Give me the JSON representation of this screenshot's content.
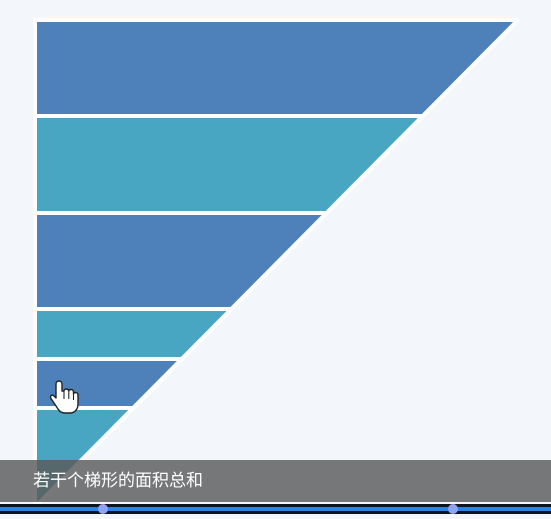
{
  "caption": {
    "text": "若干个梯形的面积总和"
  },
  "figure": {
    "description_fill_colors": {
      "blue": "#4e81ba",
      "teal": "#48a6c2",
      "outline": "#ffffff"
    },
    "strips": [
      {
        "color": "blue"
      },
      {
        "color": "teal"
      },
      {
        "color": "blue"
      },
      {
        "color": "teal"
      },
      {
        "color": "blue"
      },
      {
        "color": "teal"
      }
    ]
  },
  "player": {
    "progress_fraction": 1.0,
    "markers": [
      0.187,
      0.823
    ],
    "accent": "#2f83e8",
    "marker_color": "#8ea4f0"
  },
  "cursor": {
    "icon": "hand-pointer-icon"
  }
}
